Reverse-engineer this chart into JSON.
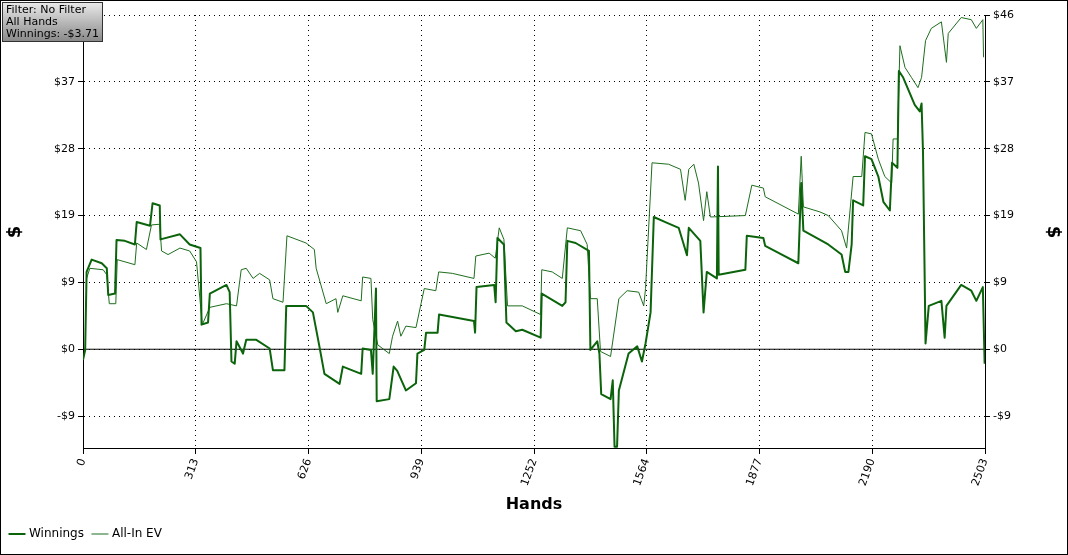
{
  "chart_data": {
    "type": "line",
    "xlabel": "Hands",
    "ylabel": "$",
    "y2label": "$",
    "annotations": [
      "Filter: No Filter",
      "All Hands",
      "Winnings: -$3.71"
    ],
    "xlim": [
      0,
      2503
    ],
    "xticks": [
      0,
      313,
      626,
      939,
      1252,
      1564,
      1877,
      2190,
      2503
    ],
    "ylim": [
      -13.8,
      46.25
    ],
    "yticks": [
      {
        "value": -9.25,
        "label": "-$9"
      },
      {
        "value": 0,
        "label": "$0"
      },
      {
        "value": 9.25,
        "label": "$9"
      },
      {
        "value": 18.5,
        "label": "$19"
      },
      {
        "value": 27.75,
        "label": "$28"
      },
      {
        "value": 37,
        "label": "$37"
      },
      {
        "value": 46.25,
        "label": null
      }
    ],
    "y2lim": [
      -13.8,
      46.25
    ],
    "y2ticks": [
      {
        "value": -9.25,
        "label": "-$9"
      },
      {
        "value": 0,
        "label": "$0"
      },
      {
        "value": 9.25,
        "label": "$9"
      },
      {
        "value": 18.5,
        "label": "$19"
      },
      {
        "value": 27.75,
        "label": "$28"
      },
      {
        "value": 37,
        "label": "$37"
      },
      {
        "value": 46.25,
        "label": "$46"
      }
    ],
    "grid": true,
    "legend": "bottom left",
    "marker": "none",
    "line_style": "solid",
    "ref_lines": [
      {
        "axis": "y",
        "value": 0,
        "color": "#000000"
      }
    ],
    "series": [
      {
        "name": "Winnings",
        "color": "#0b640b",
        "x": [
          0,
          6,
          10,
          24,
          52,
          66,
          70,
          89,
          93,
          116,
          144,
          149,
          186,
          193,
          213,
          215,
          269,
          296,
          326,
          329,
          347,
          352,
          398,
          407,
          412,
          421,
          426,
          444,
          453,
          481,
          518,
          527,
          559,
          564,
          619,
          638,
          656,
          670,
          712,
          721,
          772,
          776,
          799,
          804,
          813,
          815,
          850,
          862,
          872,
          896,
          924,
          928,
          947,
          952,
          984,
          988,
          1085,
          1088,
          1092,
          1141,
          1145,
          1150,
          1168,
          1175,
          1201,
          1219,
          1270,
          1273,
          1330,
          1339,
          1344,
          1367,
          1404,
          1408,
          1427,
          1433,
          1438,
          1464,
          1470,
          1475,
          1482,
          1487,
          1514,
          1538,
          1551,
          1561,
          1575,
          1584,
          1616,
          1653,
          1676,
          1681,
          1713,
          1722,
          1731,
          1759,
          1762,
          1764,
          1838,
          1842,
          1888,
          1893,
          1985,
          1993,
          1999,
          2068,
          2105,
          2115,
          2124,
          2133,
          2137,
          2165,
          2170,
          2188,
          2207,
          2221,
          2239,
          2245,
          2260,
          2264,
          2276,
          2308,
          2322,
          2327,
          2331,
          2338,
          2347,
          2382,
          2391,
          2396,
          2437,
          2465,
          2479,
          2497,
          2502
        ],
        "values": [
          -1.5,
          -0.1,
          10.7,
          12.4,
          11.9,
          11.2,
          7.5,
          7.7,
          15.1,
          15.0,
          14.5,
          17.6,
          17.1,
          20.2,
          19.9,
          15.2,
          15.9,
          14.5,
          14.0,
          3.4,
          3.7,
          7.7,
          8.9,
          7.9,
          -1.7,
          -2.0,
          1.1,
          -0.6,
          1.3,
          1.3,
          0.1,
          -2.9,
          -2.9,
          6.0,
          6.0,
          5.1,
          0.4,
          -3.4,
          -4.8,
          -2.4,
          -3.4,
          0.1,
          -0.1,
          -3.4,
          8.4,
          -7.2,
          -6.9,
          -2.4,
          -3.0,
          -5.7,
          -4.7,
          -0.6,
          -0.1,
          2.3,
          2.3,
          4.8,
          3.9,
          2.3,
          8.6,
          8.9,
          6.5,
          15.4,
          14.5,
          3.7,
          2.5,
          2.7,
          1.6,
          7.7,
          6.0,
          6.5,
          15.0,
          14.7,
          13.6,
          -0.1,
          1.1,
          -0.6,
          -6.2,
          -6.9,
          -4.3,
          -13.5,
          -13.5,
          -5.7,
          -0.6,
          0.4,
          -1.7,
          0.8,
          5.1,
          18.3,
          17.6,
          16.8,
          13.0,
          16.8,
          15.0,
          5.1,
          10.7,
          9.8,
          25.3,
          10.3,
          11.0,
          15.7,
          15.4,
          14.3,
          11.9,
          23.0,
          16.4,
          14.5,
          13.1,
          10.7,
          10.7,
          14.5,
          20.6,
          19.9,
          26.7,
          26.3,
          23.9,
          20.4,
          19.2,
          25.8,
          25.1,
          38.5,
          37.6,
          33.8,
          32.9,
          34.0,
          27.2,
          0.8,
          6.0,
          6.7,
          1.6,
          6.0,
          8.9,
          8.1,
          6.7,
          8.6,
          -2.0
        ]
      },
      {
        "name": "All-In EV",
        "color": "#1e6e1e",
        "x": [
          10,
          19,
          56,
          66,
          73,
          91,
          95,
          144,
          149,
          176,
          190,
          213,
          218,
          236,
          269,
          296,
          315,
          331,
          352,
          398,
          426,
          439,
          453,
          472,
          490,
          518,
          527,
          555,
          566,
          619,
          642,
          647,
          675,
          702,
          707,
          721,
          772,
          776,
          799,
          804,
          818,
          850,
          859,
          873,
          882,
          896,
          924,
          938,
          947,
          979,
          987,
          1025,
          1085,
          1090,
          1127,
          1144,
          1155,
          1168,
          1178,
          1219,
          1270,
          1273,
          1302,
          1330,
          1344,
          1381,
          1399,
          1408,
          1427,
          1436,
          1464,
          1487,
          1510,
          1542,
          1556,
          1561,
          1579,
          1625,
          1658,
          1671,
          1681,
          1695,
          1708,
          1722,
          1731,
          1741,
          1838,
          1856,
          1888,
          1893,
          1985,
          1993,
          1999,
          2045,
          2068,
          2105,
          2119,
          2137,
          2161,
          2170,
          2188,
          2207,
          2225,
          2244,
          2248,
          2260,
          2267,
          2281,
          2299,
          2317,
          2327,
          2338,
          2354,
          2382,
          2396,
          2401,
          2437,
          2465,
          2479,
          2497,
          2499
        ],
        "values": [
          9.8,
          11.2,
          11.0,
          10.3,
          6.3,
          6.3,
          12.4,
          11.7,
          14.7,
          13.8,
          17.2,
          17.3,
          13.6,
          13.1,
          14.0,
          13.6,
          12.1,
          3.4,
          5.8,
          6.3,
          6.0,
          11.0,
          11.2,
          9.8,
          10.5,
          9.6,
          7.0,
          6.5,
          15.7,
          14.7,
          13.8,
          11.2,
          6.3,
          7.0,
          5.1,
          7.4,
          6.7,
          10.0,
          9.8,
          4.1,
          0.6,
          -0.6,
          1.8,
          3.9,
          1.8,
          3.2,
          3.0,
          6.3,
          8.4,
          8.1,
          10.7,
          10.5,
          9.8,
          12.9,
          13.3,
          12.6,
          16.8,
          15.2,
          6.0,
          6.0,
          4.8,
          11.0,
          10.7,
          9.8,
          16.8,
          16.4,
          14.5,
          7.0,
          7.0,
          -0.3,
          -1.0,
          7.0,
          8.1,
          7.9,
          6.0,
          8.4,
          25.8,
          25.6,
          24.9,
          20.6,
          24.9,
          25.6,
          23.0,
          17.8,
          21.8,
          18.3,
          18.5,
          22.7,
          22.3,
          21.1,
          18.7,
          26.7,
          19.7,
          19.0,
          18.5,
          16.4,
          14.0,
          23.9,
          23.9,
          30.0,
          29.8,
          26.3,
          23.9,
          23.0,
          29.1,
          29.1,
          42.0,
          39.0,
          37.6,
          36.2,
          37.6,
          42.7,
          44.4,
          45.3,
          39.7,
          43.7,
          45.9,
          45.6,
          44.4,
          45.6,
          40.4
        ]
      }
    ]
  }
}
